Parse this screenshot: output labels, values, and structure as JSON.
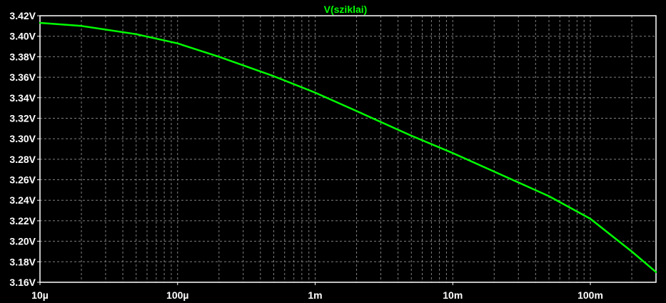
{
  "chart_data": {
    "type": "line",
    "title": "V(sziklai)",
    "x_scale": "log",
    "xlim": [
      1e-05,
      0.3
    ],
    "ylim": [
      3.16,
      3.42
    ],
    "grid": true,
    "background": "#000000",
    "grid_color": "#808080",
    "text_color": "#ffffff",
    "x_tick_values": [
      1e-05,
      0.0001,
      0.001,
      0.01,
      0.1
    ],
    "x_tick_labels": [
      "10µ",
      "100µ",
      "1m",
      "10m",
      "100m"
    ],
    "y_tick_values": [
      3.16,
      3.18,
      3.2,
      3.22,
      3.24,
      3.26,
      3.28,
      3.3,
      3.32,
      3.34,
      3.36,
      3.38,
      3.4,
      3.42
    ],
    "y_tick_labels": [
      "3.16V",
      "3.18V",
      "3.20V",
      "3.22V",
      "3.24V",
      "3.26V",
      "3.28V",
      "3.30V",
      "3.32V",
      "3.34V",
      "3.36V",
      "3.38V",
      "3.40V",
      "3.42V"
    ],
    "series": [
      {
        "name": "V(sziklai)",
        "color": "#00ff00",
        "x": [
          1e-05,
          2e-05,
          5e-05,
          0.0001,
          0.0002,
          0.0005,
          0.001,
          0.002,
          0.005,
          0.01,
          0.02,
          0.05,
          0.1,
          0.2,
          0.3
        ],
        "y": [
          3.413,
          3.41,
          3.402,
          3.393,
          3.38,
          3.361,
          3.345,
          3.327,
          3.303,
          3.286,
          3.268,
          3.244,
          3.222,
          3.19,
          3.17
        ]
      }
    ]
  }
}
